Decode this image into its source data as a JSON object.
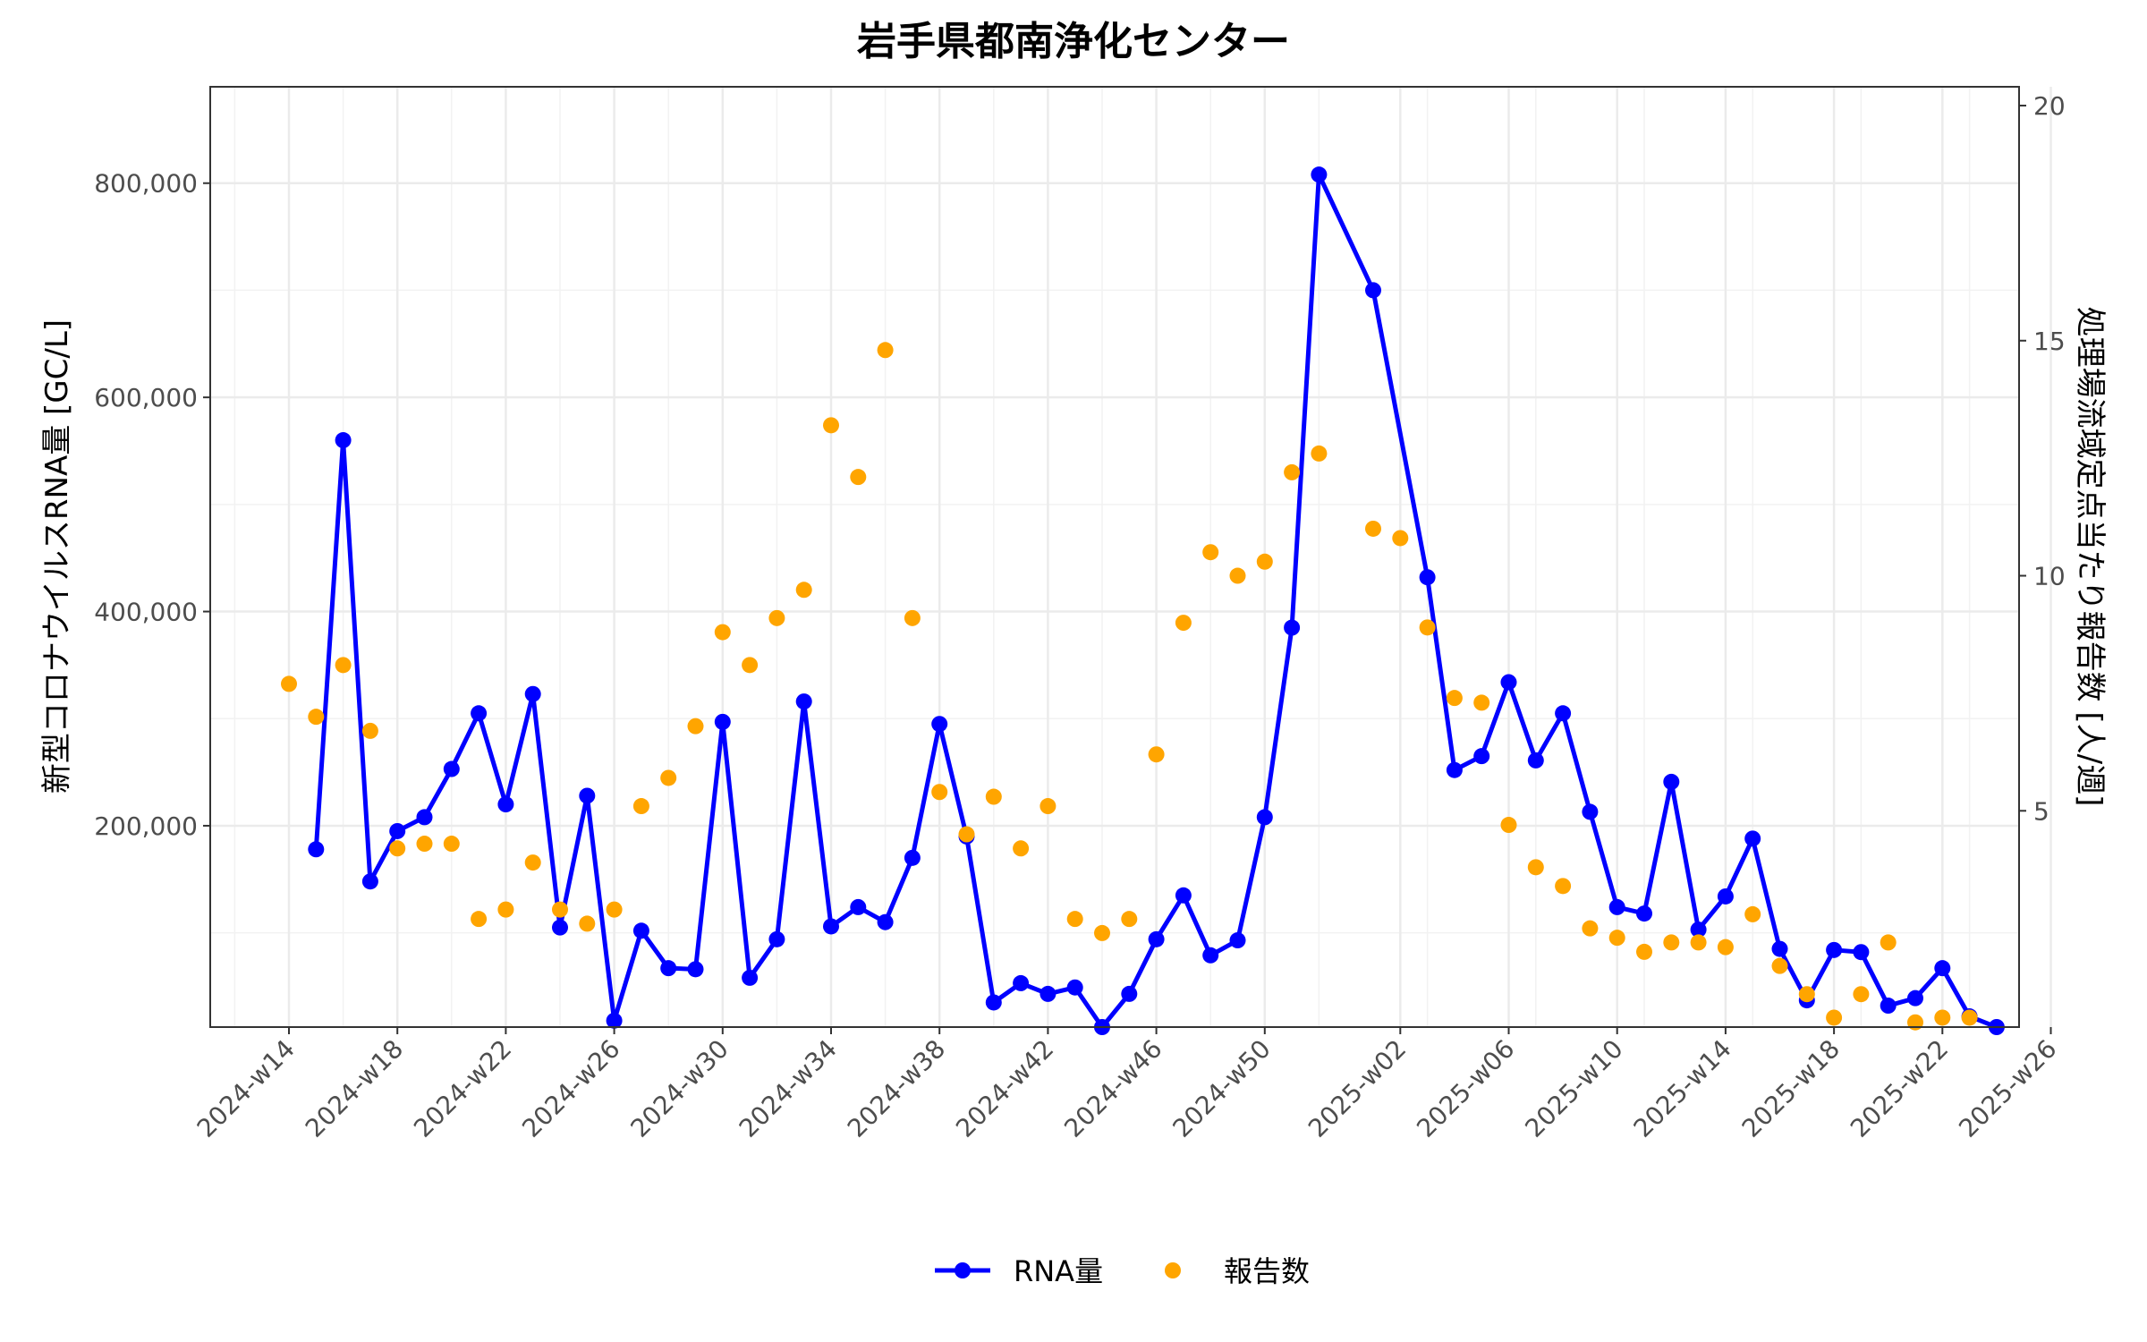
{
  "chart_data": {
    "type": "line",
    "title": "岩手県都南浄化センター",
    "ylabel": "新型コロナウイルスRNA量 [GC/L]",
    "y2label": "処理場流域定点当たり報告数 [人/週]",
    "ylim": [
      12000,
      890000
    ],
    "y2lim": [
      0.4,
      20.4
    ],
    "y_ticks": [
      200000,
      400000,
      600000,
      800000
    ],
    "y_tick_labels": [
      "200,000",
      "400,000",
      "600,000",
      "800,000"
    ],
    "y2_ticks": [
      5,
      10,
      15,
      20
    ],
    "y2_tick_labels": [
      "5",
      "10",
      "15",
      "20"
    ],
    "x_ticks": [
      "2024-w14",
      "2024-w18",
      "2024-w22",
      "2024-w26",
      "2024-w30",
      "2024-w34",
      "2024-w38",
      "2024-w42",
      "2024-w46",
      "2024-w50",
      "2025-w02",
      "2025-w06",
      "2025-w10",
      "2025-w14",
      "2025-w18",
      "2025-w22",
      "2025-w26"
    ],
    "grid": true,
    "legend_position": "bottom",
    "colors": {
      "rna": "#0000ff",
      "reports": "#ffa500"
    },
    "series": [
      {
        "name": "RNA量",
        "kind": "line+points",
        "axis": "left",
        "points": [
          [
            "2024-w15",
            178000
          ],
          [
            "2024-w16",
            560000
          ],
          [
            "2024-w17",
            148000
          ],
          [
            "2024-w18",
            195000
          ],
          [
            "2024-w19",
            208000
          ],
          [
            "2024-w20",
            253000
          ],
          [
            "2024-w21",
            305000
          ],
          [
            "2024-w22",
            220000
          ],
          [
            "2024-w23",
            323000
          ],
          [
            "2024-w24",
            105000
          ],
          [
            "2024-w25",
            228000
          ],
          [
            "2024-w26",
            18000
          ],
          [
            "2024-w27",
            102000
          ],
          [
            "2024-w28",
            67000
          ],
          [
            "2024-w29",
            66000
          ],
          [
            "2024-w30",
            297000
          ],
          [
            "2024-w31",
            58000
          ],
          [
            "2024-w32",
            94000
          ],
          [
            "2024-w33",
            316000
          ],
          [
            "2024-w34",
            106000
          ],
          [
            "2024-w35",
            124000
          ],
          [
            "2024-w36",
            110000
          ],
          [
            "2024-w37",
            170000
          ],
          [
            "2024-w38",
            295000
          ],
          [
            "2024-w39",
            190000
          ],
          [
            "2024-w40",
            35000
          ],
          [
            "2024-w41",
            53000
          ],
          [
            "2024-w42",
            43000
          ],
          [
            "2024-w43",
            49000
          ],
          [
            "2024-w44",
            12000
          ],
          [
            "2024-w45",
            43000
          ],
          [
            "2024-w46",
            94000
          ],
          [
            "2024-w47",
            135000
          ],
          [
            "2024-w48",
            79000
          ],
          [
            "2024-w49",
            93000
          ],
          [
            "2024-w50",
            208000
          ],
          [
            "2024-w51",
            385000
          ],
          [
            "2024-w52",
            808000
          ],
          [
            "2025-w01",
            700000
          ],
          [
            "2025-w03",
            432000
          ],
          [
            "2025-w04",
            252000
          ],
          [
            "2025-w05",
            265000
          ],
          [
            "2025-w06",
            334000
          ],
          [
            "2025-w07",
            261000
          ],
          [
            "2025-w08",
            305000
          ],
          [
            "2025-w09",
            213000
          ],
          [
            "2025-w10",
            124000
          ],
          [
            "2025-w11",
            118000
          ],
          [
            "2025-w12",
            241000
          ],
          [
            "2025-w13",
            103000
          ],
          [
            "2025-w14",
            134000
          ],
          [
            "2025-w15",
            188000
          ],
          [
            "2025-w16",
            85000
          ],
          [
            "2025-w17",
            37000
          ],
          [
            "2025-w18",
            84000
          ],
          [
            "2025-w19",
            82000
          ],
          [
            "2025-w20",
            32000
          ],
          [
            "2025-w21",
            39000
          ],
          [
            "2025-w22",
            67000
          ],
          [
            "2025-w23",
            22000
          ],
          [
            "2025-w24",
            12000
          ]
        ]
      },
      {
        "name": "報告数",
        "kind": "points",
        "axis": "right",
        "points": [
          [
            "2024-w14",
            7.7
          ],
          [
            "2024-w15",
            7.0
          ],
          [
            "2024-w16",
            8.1
          ],
          [
            "2024-w17",
            6.7
          ],
          [
            "2024-w18",
            4.2
          ],
          [
            "2024-w19",
            4.3
          ],
          [
            "2024-w20",
            4.3
          ],
          [
            "2024-w21",
            2.7
          ],
          [
            "2024-w22",
            2.9
          ],
          [
            "2024-w23",
            3.9
          ],
          [
            "2024-w24",
            2.9
          ],
          [
            "2024-w25",
            2.6
          ],
          [
            "2024-w26",
            2.9
          ],
          [
            "2024-w27",
            5.1
          ],
          [
            "2024-w28",
            5.7
          ],
          [
            "2024-w29",
            6.8
          ],
          [
            "2024-w30",
            8.8
          ],
          [
            "2024-w31",
            8.1
          ],
          [
            "2024-w32",
            9.1
          ],
          [
            "2024-w33",
            9.7
          ],
          [
            "2024-w34",
            13.2
          ],
          [
            "2024-w35",
            12.1
          ],
          [
            "2024-w36",
            14.8
          ],
          [
            "2024-w37",
            9.1
          ],
          [
            "2024-w38",
            5.4
          ],
          [
            "2024-w39",
            4.5
          ],
          [
            "2024-w40",
            5.3
          ],
          [
            "2024-w41",
            4.2
          ],
          [
            "2024-w42",
            5.1
          ],
          [
            "2024-w43",
            2.7
          ],
          [
            "2024-w44",
            2.4
          ],
          [
            "2024-w45",
            2.7
          ],
          [
            "2024-w46",
            6.2
          ],
          [
            "2024-w47",
            9.0
          ],
          [
            "2024-w48",
            10.5
          ],
          [
            "2024-w49",
            10.0
          ],
          [
            "2024-w50",
            10.3
          ],
          [
            "2024-w51",
            12.2
          ],
          [
            "2024-w52",
            12.6
          ],
          [
            "2025-w01",
            11.0
          ],
          [
            "2025-w02",
            10.8
          ],
          [
            "2025-w03",
            8.9
          ],
          [
            "2025-w04",
            7.4
          ],
          [
            "2025-w05",
            7.3
          ],
          [
            "2025-w06",
            4.7
          ],
          [
            "2025-w07",
            3.8
          ],
          [
            "2025-w08",
            3.4
          ],
          [
            "2025-w09",
            2.5
          ],
          [
            "2025-w10",
            2.3
          ],
          [
            "2025-w11",
            2.0
          ],
          [
            "2025-w12",
            2.2
          ],
          [
            "2025-w13",
            2.2
          ],
          [
            "2025-w14",
            2.1
          ],
          [
            "2025-w15",
            2.8
          ],
          [
            "2025-w16",
            1.7
          ],
          [
            "2025-w17",
            1.1
          ],
          [
            "2025-w18",
            0.6
          ],
          [
            "2025-w19",
            1.1
          ],
          [
            "2025-w20",
            2.2
          ],
          [
            "2025-w21",
            0.5
          ],
          [
            "2025-w22",
            0.6
          ],
          [
            "2025-w23",
            0.6
          ]
        ]
      }
    ]
  }
}
